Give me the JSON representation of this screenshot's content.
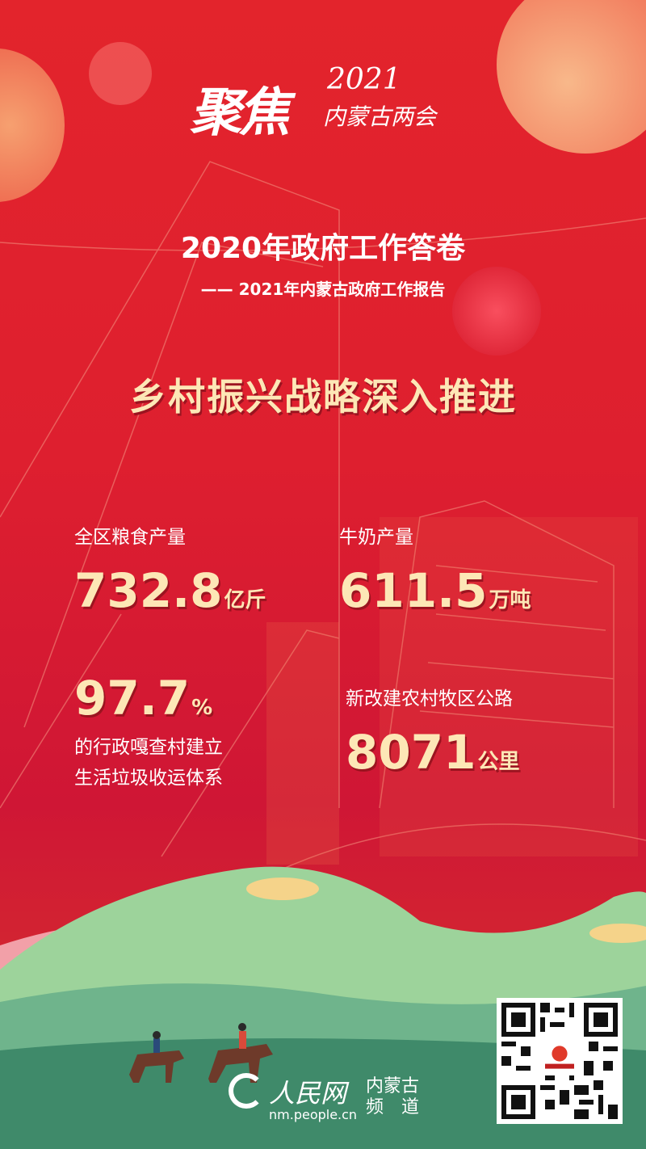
{
  "header": {
    "logo_text": "聚焦",
    "logo_year": "2021",
    "logo_sub": "内蒙古两会"
  },
  "title": "2020年政府工作答卷",
  "subtitle": "—— 2021年内蒙古政府工作报告",
  "headline": "乡村振兴战略深入推进",
  "stats": [
    {
      "label": "全区粮食产量",
      "value": "732.8",
      "unit": "亿斤"
    },
    {
      "label": "牛奶产量",
      "value": "611.5",
      "unit": "万吨"
    },
    {
      "value": "97.7",
      "unit": "%",
      "label_lines": [
        "的行政嘎查村建立",
        "生活垃圾收运体系"
      ]
    },
    {
      "label": "新改建农村牧区公路",
      "value": "8071",
      "unit": "公里"
    }
  ],
  "footer": {
    "brand": "人民网",
    "channel_line1": "内蒙古",
    "channel_line2": "频　道",
    "url": "nm.people.cn"
  },
  "colors": {
    "background": "#de1f2f",
    "highlight": "#fde7b6",
    "hills": "#8fcf94",
    "grass": "#3f8a6a"
  }
}
